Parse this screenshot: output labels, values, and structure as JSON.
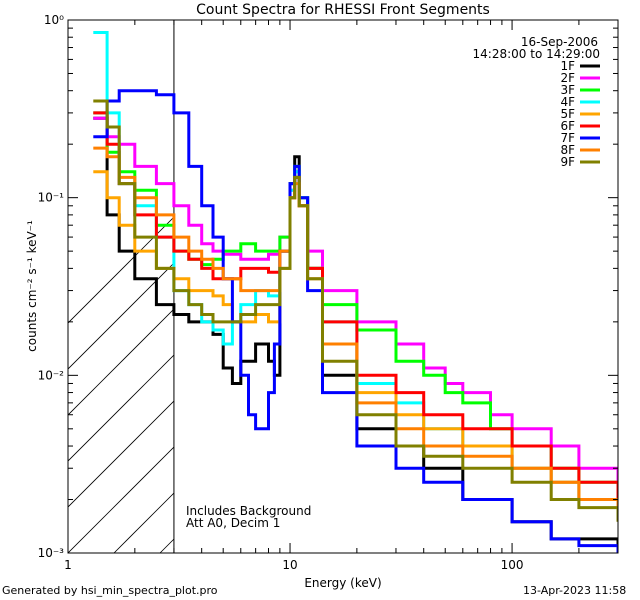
{
  "chart_data": {
    "type": "line",
    "title": "Count Spectra for RHESSI Front Segments",
    "xlabel": "Energy (keV)",
    "ylabel": "counts cm⁻² s⁻¹ keV⁻¹",
    "xscale": "log",
    "yscale": "log",
    "xlim": [
      1,
      300
    ],
    "ylim": [
      0.001,
      1
    ],
    "x_ticks": [
      {
        "value": 1,
        "label": "1"
      },
      {
        "value": 10,
        "label": "10"
      },
      {
        "value": 100,
        "label": "100"
      }
    ],
    "y_ticks": [
      {
        "value": 0.001,
        "label": "10⁻³"
      },
      {
        "value": 0.01,
        "label": "10⁻²"
      },
      {
        "value": 0.1,
        "label": "10⁻¹"
      },
      {
        "value": 1,
        "label": "10⁰"
      }
    ],
    "date": "16-Sep-2006",
    "time_range": "14:28:00 to 14:29:00",
    "annotation_lines": [
      "Includes Background",
      "Att A0, Decim 1"
    ],
    "excluded_region_upper_kev": 3,
    "series": [
      {
        "name": "1F",
        "color": "#000000",
        "points": [
          [
            1.3,
            0.28
          ],
          [
            1.5,
            0.08
          ],
          [
            1.7,
            0.05
          ],
          [
            2.0,
            0.035
          ],
          [
            2.5,
            0.025
          ],
          [
            3.0,
            0.022
          ],
          [
            3.5,
            0.02
          ],
          [
            4.0,
            0.02
          ],
          [
            4.5,
            0.017
          ],
          [
            5.0,
            0.011
          ],
          [
            5.5,
            0.009
          ],
          [
            6.0,
            0.012
          ],
          [
            7.0,
            0.015
          ],
          [
            8.0,
            0.012
          ],
          [
            8.5,
            0.01
          ],
          [
            9.0,
            0.05
          ],
          [
            10.0,
            0.12
          ],
          [
            10.5,
            0.17
          ],
          [
            11.0,
            0.1
          ],
          [
            12.0,
            0.04
          ],
          [
            14.0,
            0.01
          ],
          [
            20.0,
            0.005
          ],
          [
            30.0,
            0.004
          ],
          [
            40.0,
            0.003
          ],
          [
            60.0,
            0.002
          ],
          [
            100.0,
            0.0015
          ],
          [
            150.0,
            0.0012
          ],
          [
            200.0,
            0.0012
          ],
          [
            300.0,
            0.0011
          ]
        ]
      },
      {
        "name": "2F",
        "color": "#ff00ff",
        "points": [
          [
            1.3,
            0.28
          ],
          [
            1.5,
            0.22
          ],
          [
            1.7,
            0.2
          ],
          [
            2.0,
            0.15
          ],
          [
            2.5,
            0.12
          ],
          [
            3.0,
            0.09
          ],
          [
            3.5,
            0.07
          ],
          [
            4.0,
            0.055
          ],
          [
            4.5,
            0.05
          ],
          [
            5.0,
            0.048
          ],
          [
            6.0,
            0.045
          ],
          [
            7.0,
            0.045
          ],
          [
            8.0,
            0.048
          ],
          [
            9.0,
            0.06
          ],
          [
            10.0,
            0.11
          ],
          [
            10.5,
            0.14
          ],
          [
            11.0,
            0.1
          ],
          [
            12.0,
            0.05
          ],
          [
            14.0,
            0.03
          ],
          [
            20.0,
            0.02
          ],
          [
            30.0,
            0.015
          ],
          [
            40.0,
            0.011
          ],
          [
            50.0,
            0.009
          ],
          [
            60.0,
            0.008
          ],
          [
            80.0,
            0.006
          ],
          [
            100.0,
            0.005
          ],
          [
            150.0,
            0.004
          ],
          [
            200.0,
            0.003
          ],
          [
            300.0,
            0.0025
          ]
        ]
      },
      {
        "name": "3F",
        "color": "#00ff00",
        "points": [
          [
            1.3,
            0.3
          ],
          [
            1.5,
            0.18
          ],
          [
            1.7,
            0.14
          ],
          [
            2.0,
            0.11
          ],
          [
            2.5,
            0.07
          ],
          [
            3.0,
            0.05
          ],
          [
            3.5,
            0.045
          ],
          [
            4.0,
            0.042
          ],
          [
            4.5,
            0.045
          ],
          [
            5.0,
            0.05
          ],
          [
            6.0,
            0.055
          ],
          [
            7.0,
            0.05
          ],
          [
            8.0,
            0.05
          ],
          [
            9.0,
            0.06
          ],
          [
            10.0,
            0.12
          ],
          [
            10.5,
            0.15
          ],
          [
            11.0,
            0.1
          ],
          [
            12.0,
            0.04
          ],
          [
            14.0,
            0.025
          ],
          [
            20.0,
            0.018
          ],
          [
            30.0,
            0.012
          ],
          [
            40.0,
            0.01
          ],
          [
            50.0,
            0.008
          ],
          [
            60.0,
            0.007
          ],
          [
            80.0,
            0.005
          ],
          [
            100.0,
            0.004
          ],
          [
            150.0,
            0.003
          ],
          [
            200.0,
            0.0025
          ],
          [
            300.0,
            0.002
          ]
        ]
      },
      {
        "name": "4F",
        "color": "#00ffff",
        "points": [
          [
            1.3,
            0.85
          ],
          [
            1.5,
            0.3
          ],
          [
            1.7,
            0.12
          ],
          [
            2.0,
            0.09
          ],
          [
            2.5,
            0.06
          ],
          [
            3.0,
            0.03
          ],
          [
            3.5,
            0.025
          ],
          [
            4.0,
            0.02
          ],
          [
            4.5,
            0.018
          ],
          [
            5.0,
            0.015
          ],
          [
            5.5,
            0.02
          ],
          [
            6.0,
            0.025
          ],
          [
            7.0,
            0.03
          ],
          [
            8.0,
            0.028
          ],
          [
            9.0,
            0.05
          ],
          [
            10.0,
            0.11
          ],
          [
            10.5,
            0.14
          ],
          [
            11.0,
            0.1
          ],
          [
            12.0,
            0.04
          ],
          [
            14.0,
            0.02
          ],
          [
            20.0,
            0.009
          ],
          [
            30.0,
            0.007
          ],
          [
            40.0,
            0.005
          ],
          [
            60.0,
            0.004
          ],
          [
            100.0,
            0.003
          ],
          [
            150.0,
            0.0025
          ],
          [
            200.0,
            0.002
          ],
          [
            300.0,
            0.0018
          ]
        ]
      },
      {
        "name": "5F",
        "color": "#ffa500",
        "points": [
          [
            1.3,
            0.14
          ],
          [
            1.5,
            0.1
          ],
          [
            1.7,
            0.07
          ],
          [
            2.0,
            0.05
          ],
          [
            2.5,
            0.04
          ],
          [
            3.0,
            0.035
          ],
          [
            3.5,
            0.03
          ],
          [
            4.0,
            0.03
          ],
          [
            4.5,
            0.028
          ],
          [
            5.0,
            0.025
          ],
          [
            5.5,
            0.02
          ],
          [
            6.0,
            0.02
          ],
          [
            7.0,
            0.022
          ],
          [
            8.0,
            0.02
          ],
          [
            9.0,
            0.04
          ],
          [
            10.0,
            0.1
          ],
          [
            10.5,
            0.13
          ],
          [
            11.0,
            0.09
          ],
          [
            12.0,
            0.04
          ],
          [
            14.0,
            0.015
          ],
          [
            20.0,
            0.008
          ],
          [
            30.0,
            0.006
          ],
          [
            40.0,
            0.005
          ],
          [
            60.0,
            0.004
          ],
          [
            100.0,
            0.003
          ],
          [
            150.0,
            0.0025
          ],
          [
            200.0,
            0.002
          ],
          [
            300.0,
            0.0018
          ]
        ]
      },
      {
        "name": "6F",
        "color": "#ff0000",
        "points": [
          [
            1.3,
            0.3
          ],
          [
            1.5,
            0.2
          ],
          [
            1.7,
            0.12
          ],
          [
            2.0,
            0.08
          ],
          [
            2.5,
            0.06
          ],
          [
            3.0,
            0.05
          ],
          [
            3.5,
            0.045
          ],
          [
            4.0,
            0.04
          ],
          [
            4.5,
            0.035
          ],
          [
            5.0,
            0.035
          ],
          [
            6.0,
            0.04
          ],
          [
            7.0,
            0.04
          ],
          [
            8.0,
            0.038
          ],
          [
            9.0,
            0.05
          ],
          [
            10.0,
            0.1
          ],
          [
            10.5,
            0.13
          ],
          [
            11.0,
            0.09
          ],
          [
            12.0,
            0.04
          ],
          [
            14.0,
            0.02
          ],
          [
            20.0,
            0.01
          ],
          [
            30.0,
            0.008
          ],
          [
            40.0,
            0.006
          ],
          [
            60.0,
            0.005
          ],
          [
            100.0,
            0.004
          ],
          [
            150.0,
            0.003
          ],
          [
            200.0,
            0.0025
          ],
          [
            300.0,
            0.002
          ]
        ]
      },
      {
        "name": "7F",
        "color": "#0000ff",
        "points": [
          [
            1.3,
            0.22
          ],
          [
            1.5,
            0.35
          ],
          [
            1.7,
            0.4
          ],
          [
            2.0,
            0.4
          ],
          [
            2.5,
            0.38
          ],
          [
            3.0,
            0.3
          ],
          [
            3.5,
            0.15
          ],
          [
            4.0,
            0.09
          ],
          [
            4.5,
            0.06
          ],
          [
            5.0,
            0.035
          ],
          [
            5.5,
            0.02
          ],
          [
            6.0,
            0.01
          ],
          [
            6.5,
            0.006
          ],
          [
            7.0,
            0.005
          ],
          [
            8.0,
            0.008
          ],
          [
            8.5,
            0.015
          ],
          [
            9.0,
            0.05
          ],
          [
            10.0,
            0.12
          ],
          [
            10.5,
            0.15
          ],
          [
            11.0,
            0.1
          ],
          [
            12.0,
            0.03
          ],
          [
            14.0,
            0.008
          ],
          [
            20.0,
            0.004
          ],
          [
            30.0,
            0.003
          ],
          [
            40.0,
            0.0025
          ],
          [
            60.0,
            0.002
          ],
          [
            100.0,
            0.0015
          ],
          [
            150.0,
            0.0012
          ],
          [
            200.0,
            0.0011
          ],
          [
            300.0,
            0.001
          ]
        ]
      },
      {
        "name": "8F",
        "color": "#ff8000",
        "points": [
          [
            1.3,
            0.19
          ],
          [
            1.5,
            0.17
          ],
          [
            1.7,
            0.13
          ],
          [
            2.0,
            0.1
          ],
          [
            2.5,
            0.08
          ],
          [
            3.0,
            0.06
          ],
          [
            3.5,
            0.05
          ],
          [
            4.0,
            0.045
          ],
          [
            4.5,
            0.04
          ],
          [
            5.0,
            0.035
          ],
          [
            6.0,
            0.03
          ],
          [
            7.0,
            0.03
          ],
          [
            8.0,
            0.03
          ],
          [
            9.0,
            0.05
          ],
          [
            10.0,
            0.1
          ],
          [
            10.5,
            0.12
          ],
          [
            11.0,
            0.09
          ],
          [
            12.0,
            0.035
          ],
          [
            14.0,
            0.015
          ],
          [
            20.0,
            0.007
          ],
          [
            30.0,
            0.005
          ],
          [
            40.0,
            0.004
          ],
          [
            60.0,
            0.0035
          ],
          [
            100.0,
            0.003
          ],
          [
            150.0,
            0.0025
          ],
          [
            200.0,
            0.002
          ],
          [
            300.0,
            0.0018
          ]
        ]
      },
      {
        "name": "9F",
        "color": "#808000",
        "points": [
          [
            1.3,
            0.35
          ],
          [
            1.5,
            0.25
          ],
          [
            1.7,
            0.12
          ],
          [
            2.0,
            0.06
          ],
          [
            2.5,
            0.04
          ],
          [
            3.0,
            0.03
          ],
          [
            3.5,
            0.025
          ],
          [
            4.0,
            0.022
          ],
          [
            4.5,
            0.02
          ],
          [
            5.0,
            0.02
          ],
          [
            6.0,
            0.022
          ],
          [
            7.0,
            0.025
          ],
          [
            8.0,
            0.025
          ],
          [
            9.0,
            0.04
          ],
          [
            10.0,
            0.1
          ],
          [
            10.5,
            0.13
          ],
          [
            11.0,
            0.09
          ],
          [
            12.0,
            0.035
          ],
          [
            14.0,
            0.012
          ],
          [
            20.0,
            0.006
          ],
          [
            30.0,
            0.004
          ],
          [
            40.0,
            0.0035
          ],
          [
            60.0,
            0.003
          ],
          [
            100.0,
            0.0025
          ],
          [
            150.0,
            0.002
          ],
          [
            200.0,
            0.0018
          ],
          [
            300.0,
            0.0015
          ]
        ]
      }
    ]
  },
  "footer": {
    "generated_by": "Generated by hsi_min_spectra_plot.pro",
    "timestamp": "13-Apr-2023 11:58"
  }
}
